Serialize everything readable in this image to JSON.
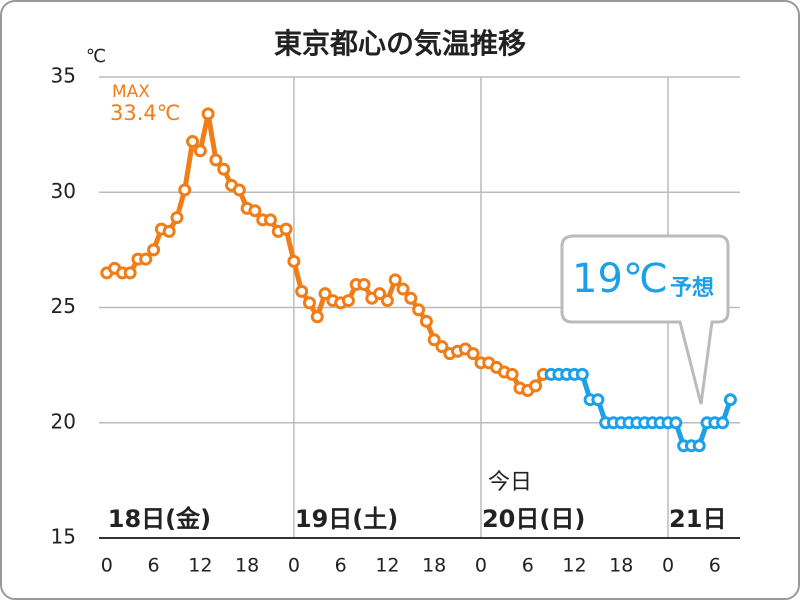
{
  "chart_data": {
    "type": "line",
    "title": "東京都心の気温推移",
    "y_unit": "℃",
    "xlim": [
      -1,
      82
    ],
    "ylim": [
      15,
      35
    ],
    "yticks": [
      15,
      20,
      25,
      30,
      35
    ],
    "xticks": [
      0,
      6,
      12,
      18,
      {
        "value": 24,
        "label": "0"
      },
      {
        "value": 30,
        "label": "6"
      },
      {
        "value": 36,
        "label": "12"
      },
      {
        "value": 42,
        "label": "18"
      },
      {
        "value": 48,
        "label": "0"
      },
      {
        "value": 54,
        "label": "6"
      },
      {
        "value": 60,
        "label": "12"
      },
      {
        "value": 66,
        "label": "18"
      },
      {
        "value": 72,
        "label": "0"
      },
      {
        "value": 78,
        "label": "6"
      }
    ],
    "days": [
      "18日(金)",
      "19日(土)",
      "20日(日)",
      "21日"
    ],
    "today_label": "今日",
    "grid": true,
    "series": [
      {
        "color": "#f07d18",
        "x": [
          0,
          1,
          2,
          3,
          4,
          5,
          6,
          7,
          8,
          9,
          10,
          11,
          12,
          13,
          14,
          15,
          16,
          17,
          18,
          19,
          20,
          21,
          22,
          23,
          24,
          25,
          26,
          27,
          28,
          29,
          30,
          31,
          32,
          33,
          34,
          35,
          36,
          37,
          38,
          39,
          40,
          41,
          42,
          43,
          44,
          45,
          46,
          47,
          48,
          49,
          50,
          51,
          52,
          53,
          54,
          55,
          56
        ],
        "values": [
          26.5,
          26.7,
          26.5,
          26.5,
          27.1,
          27.1,
          27.5,
          28.4,
          28.3,
          28.9,
          30.1,
          32.2,
          31.8,
          33.4,
          31.4,
          31.0,
          30.3,
          30.1,
          29.3,
          29.2,
          28.8,
          28.8,
          28.3,
          28.4,
          27.0,
          25.7,
          25.2,
          24.6,
          25.6,
          25.3,
          25.2,
          25.3,
          26.0,
          26.0,
          25.4,
          25.6,
          25.3,
          26.2,
          25.8,
          25.4,
          24.9,
          24.4,
          23.6,
          23.3,
          23.0,
          23.1,
          23.2,
          23.0,
          22.6,
          22.6,
          22.4,
          22.2,
          22.1,
          21.5,
          21.4,
          21.6,
          22.1
        ]
      },
      {
        "color": "#1ca0e8",
        "x": [
          57,
          58,
          59,
          60,
          61,
          62,
          63,
          64,
          65,
          66,
          67,
          68,
          69,
          70,
          71,
          72,
          73,
          74,
          75,
          76,
          77,
          78,
          79,
          80
        ],
        "values": [
          22.1,
          22.1,
          22.1,
          22.1,
          22.1,
          21.0,
          21.0,
          20.0,
          20.0,
          20.0,
          20.0,
          20.0,
          20.0,
          20.0,
          20.0,
          20.0,
          20.0,
          19.0,
          19.0,
          19.0,
          20.0,
          20.0,
          20.0,
          21.0
        ]
      }
    ],
    "max_annotation": {
      "label": "MAX",
      "value_text": "33.4℃"
    },
    "forecast_callout": {
      "value_text": "19℃",
      "suffix": "予想"
    }
  }
}
